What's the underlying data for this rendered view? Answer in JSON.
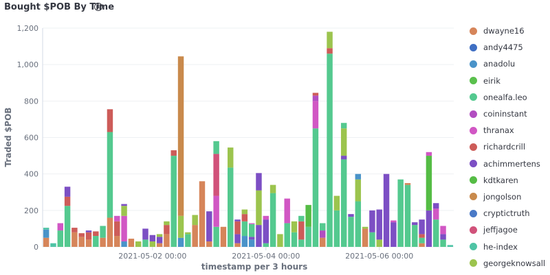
{
  "panel": {
    "title": "Bought $POB By Time",
    "info_icon": "info-icon",
    "info_glyph": "i"
  },
  "chart_data": {
    "type": "bar",
    "stacked": true,
    "title": "Bought $POB By Time",
    "xlabel": "timestamp per 3 hours",
    "ylabel": "Traded $POB",
    "ylim": [
      0,
      1200
    ],
    "yticks": [
      0,
      200,
      400,
      600,
      800,
      1000,
      1200
    ],
    "ytick_labels": [
      "0",
      "200",
      "400",
      "600",
      "800",
      "1,000",
      "1,200"
    ],
    "xtick_labels": [
      {
        "label": "2021-05-02 00:00",
        "at_bar": 15
      },
      {
        "label": "2021-05-04 00:00",
        "at_bar": 31
      },
      {
        "label": "2021-05-06 00:00",
        "at_bar": 47
      }
    ],
    "grid": true,
    "legend_position": "right",
    "series": [
      {
        "name": "dwayne16",
        "color": "#d6855a"
      },
      {
        "name": "andy4475",
        "color": "#3f6fc3"
      },
      {
        "name": "anadolu",
        "color": "#4a93c9"
      },
      {
        "name": "eirik",
        "color": "#5ac04d"
      },
      {
        "name": "onealfa.leo",
        "color": "#54c98f"
      },
      {
        "name": "coininstant",
        "color": "#b24ec1"
      },
      {
        "name": "thranax",
        "color": "#d157c4"
      },
      {
        "name": "richardcrill",
        "color": "#cd5c59"
      },
      {
        "name": "achimmertens",
        "color": "#7c4fc4"
      },
      {
        "name": "kdtkaren",
        "color": "#55bc45"
      },
      {
        "name": "jongolson",
        "color": "#c98a4c"
      },
      {
        "name": "cryptictruth",
        "color": "#4a7ac7"
      },
      {
        "name": "jeffjagoe",
        "color": "#d1527a"
      },
      {
        "name": "he-index",
        "color": "#4fc4a5"
      },
      {
        "name": "georgeknowsall",
        "color": "#9cc44e"
      }
    ],
    "bars": [
      [
        {
          "s": "dwayne16",
          "v": 50
        },
        {
          "s": "anadolu",
          "v": 45
        },
        {
          "s": "he-index",
          "v": 10
        }
      ],
      [
        {
          "s": "he-index",
          "v": 20
        }
      ],
      [
        {
          "s": "onealfa.leo",
          "v": 90
        },
        {
          "s": "thranax",
          "v": 40
        }
      ],
      [
        {
          "s": "onealfa.leo",
          "v": 225
        },
        {
          "s": "richardcrill",
          "v": 50
        },
        {
          "s": "achimmertens",
          "v": 55
        }
      ],
      [
        {
          "s": "dwayne16",
          "v": 80
        },
        {
          "s": "richardcrill",
          "v": 25
        }
      ],
      [
        {
          "s": "dwayne16",
          "v": 55
        },
        {
          "s": "richardcrill",
          "v": 20
        }
      ],
      [
        {
          "s": "dwayne16",
          "v": 40
        },
        {
          "s": "richardcrill",
          "v": 40
        },
        {
          "s": "achimmertens",
          "v": 10
        }
      ],
      [
        {
          "s": "onealfa.leo",
          "v": 60
        },
        {
          "s": "richardcrill",
          "v": 25
        }
      ],
      [
        {
          "s": "dwayne16",
          "v": 50
        },
        {
          "s": "onealfa.leo",
          "v": 65
        }
      ],
      [
        {
          "s": "dwayne16",
          "v": 160
        },
        {
          "s": "onealfa.leo",
          "v": 470
        },
        {
          "s": "richardcrill",
          "v": 125
        }
      ],
      [
        {
          "s": "dwayne16",
          "v": 60
        },
        {
          "s": "richardcrill",
          "v": 80
        },
        {
          "s": "thranax",
          "v": 30
        }
      ],
      [
        {
          "s": "anadolu",
          "v": 30
        },
        {
          "s": "thranax",
          "v": 140
        },
        {
          "s": "georgeknowsall",
          "v": 55
        },
        {
          "s": "achimmertens",
          "v": 10
        }
      ],
      [
        {
          "s": "dwayne16",
          "v": 45
        }
      ],
      [
        {
          "s": "georgeknowsall",
          "v": 30
        }
      ],
      [
        {
          "s": "onealfa.leo",
          "v": 40
        },
        {
          "s": "achimmertens",
          "v": 60
        }
      ],
      [
        {
          "s": "georgeknowsall",
          "v": 30
        },
        {
          "s": "achimmertens",
          "v": 35
        }
      ],
      [
        {
          "s": "dwayne16",
          "v": 20
        },
        {
          "s": "achimmertens",
          "v": 35
        },
        {
          "s": "georgeknowsall",
          "v": 15
        }
      ],
      [
        {
          "s": "dwayne16",
          "v": 70
        },
        {
          "s": "richardcrill",
          "v": 50
        },
        {
          "s": "georgeknowsall",
          "v": 20
        }
      ],
      [
        {
          "s": "onealfa.leo",
          "v": 500
        },
        {
          "s": "richardcrill",
          "v": 30
        }
      ],
      [
        {
          "s": "anadolu",
          "v": 50
        },
        {
          "s": "georgeknowsall",
          "v": 120
        },
        {
          "s": "jongolson",
          "v": 875
        }
      ],
      [
        {
          "s": "onealfa.leo",
          "v": 70
        },
        {
          "s": "georgeknowsall",
          "v": 10
        }
      ],
      [
        {
          "s": "dwayne16",
          "v": 120
        },
        {
          "s": "georgeknowsall",
          "v": 55
        }
      ],
      [
        {
          "s": "dwayne16",
          "v": 360
        }
      ],
      [
        {
          "s": "dwayne16",
          "v": 30
        },
        {
          "s": "achimmertens",
          "v": 165
        }
      ],
      [
        {
          "s": "onealfa.leo",
          "v": 110
        },
        {
          "s": "thranax",
          "v": 170
        },
        {
          "s": "jeffjagoe",
          "v": 230
        },
        {
          "s": "onealfa.leo",
          "v": 70
        }
      ],
      [
        {
          "s": "dwayne16",
          "v": 110
        }
      ],
      [
        {
          "s": "onealfa.leo",
          "v": 435
        },
        {
          "s": "georgeknowsall",
          "v": 110
        }
      ],
      [
        {
          "s": "dwayne16",
          "v": 20
        },
        {
          "s": "achimmertens",
          "v": 50
        },
        {
          "s": "richardcrill",
          "v": 70
        },
        {
          "s": "achimmertens",
          "v": 10
        }
      ],
      [
        {
          "s": "anadolu",
          "v": 60
        },
        {
          "s": "onealfa.leo",
          "v": 80
        },
        {
          "s": "richardcrill",
          "v": 40
        },
        {
          "s": "georgeknowsall",
          "v": 25
        }
      ],
      [
        {
          "s": "anadolu",
          "v": 40
        },
        {
          "s": "achimmertens",
          "v": 15
        },
        {
          "s": "onealfa.leo",
          "v": 70
        },
        {
          "s": "thranax",
          "v": 5
        }
      ],
      [
        {
          "s": "achimmertens",
          "v": 120
        },
        {
          "s": "georgeknowsall",
          "v": 190
        },
        {
          "s": "achimmertens",
          "v": 95
        }
      ],
      [
        {
          "s": "onealfa.leo",
          "v": 20
        },
        {
          "s": "achimmertens",
          "v": 130
        },
        {
          "s": "thranax",
          "v": 20
        }
      ],
      [
        {
          "s": "onealfa.leo",
          "v": 295
        },
        {
          "s": "georgeknowsall",
          "v": 45
        }
      ],
      [
        {
          "s": "georgeknowsall",
          "v": 70
        }
      ],
      [
        {
          "s": "onealfa.leo",
          "v": 130
        },
        {
          "s": "thranax",
          "v": 135
        }
      ],
      [
        {
          "s": "onealfa.leo",
          "v": 80
        },
        {
          "s": "georgeknowsall",
          "v": 60
        }
      ],
      [
        {
          "s": "onealfa.leo",
          "v": 40
        },
        {
          "s": "richardcrill",
          "v": 100
        },
        {
          "s": "onealfa.leo",
          "v": 30
        }
      ],
      [
        {
          "s": "onealfa.leo",
          "v": 110
        },
        {
          "s": "kdtkaren",
          "v": 120
        }
      ],
      [
        {
          "s": "onealfa.leo",
          "v": 650
        },
        {
          "s": "thranax",
          "v": 150
        },
        {
          "s": "coininstant",
          "v": 30
        },
        {
          "s": "richardcrill",
          "v": 15
        }
      ],
      [
        {
          "s": "dwayne16",
          "v": 50
        },
        {
          "s": "coininstant",
          "v": 40
        },
        {
          "s": "onealfa.leo",
          "v": 40
        }
      ],
      [
        {
          "s": "onealfa.leo",
          "v": 1060
        },
        {
          "s": "richardcrill",
          "v": 30
        },
        {
          "s": "georgeknowsall",
          "v": 90
        }
      ],
      [
        {
          "s": "onealfa.leo",
          "v": 200
        },
        {
          "s": "georgeknowsall",
          "v": 80
        }
      ],
      [
        {
          "s": "onealfa.leo",
          "v": 480
        },
        {
          "s": "achimmertens",
          "v": 20
        },
        {
          "s": "georgeknowsall",
          "v": 150
        },
        {
          "s": "onealfa.leo",
          "v": 30
        }
      ],
      [
        {
          "s": "onealfa.leo",
          "v": 165
        },
        {
          "s": "achimmertens",
          "v": 15
        }
      ],
      [
        {
          "s": "onealfa.leo",
          "v": 250
        },
        {
          "s": "georgeknowsall",
          "v": 120
        },
        {
          "s": "anadolu",
          "v": 30
        }
      ],
      [
        {
          "s": "dwayne16",
          "v": 100
        },
        {
          "s": "georgeknowsall",
          "v": 10
        }
      ],
      [
        {
          "s": "onealfa.leo",
          "v": 80
        },
        {
          "s": "achimmertens",
          "v": 120
        }
      ],
      [
        {
          "s": "georgeknowsall",
          "v": 40
        },
        {
          "s": "achimmertens",
          "v": 165
        }
      ],
      [
        {
          "s": "achimmertens",
          "v": 400
        }
      ],
      [
        {
          "s": "achimmertens",
          "v": 135
        },
        {
          "s": "thranax",
          "v": 10
        }
      ],
      [
        {
          "s": "onealfa.leo",
          "v": 370
        }
      ],
      [
        {
          "s": "onealfa.leo",
          "v": 340
        },
        {
          "s": "dwayne16",
          "v": 10
        }
      ],
      [
        {
          "s": "onealfa.leo",
          "v": 120
        },
        {
          "s": "achimmertens",
          "v": 15
        }
      ],
      [
        {
          "s": "dwayne16",
          "v": 20
        },
        {
          "s": "onealfa.leo",
          "v": 30
        },
        {
          "s": "richardcrill",
          "v": 20
        },
        {
          "s": "achimmertens",
          "v": 80
        }
      ],
      [
        {
          "s": "achimmertens",
          "v": 200
        },
        {
          "s": "kdtkaren",
          "v": 300
        },
        {
          "s": "thranax",
          "v": 20
        }
      ],
      [
        {
          "s": "onealfa.leo",
          "v": 150
        },
        {
          "s": "thranax",
          "v": 60
        },
        {
          "s": "achimmertens",
          "v": 30
        }
      ],
      [
        {
          "s": "onealfa.leo",
          "v": 40
        },
        {
          "s": "achimmertens",
          "v": 30
        },
        {
          "s": "thranax",
          "v": 45
        }
      ],
      [
        {
          "s": "he-index",
          "v": 10
        }
      ]
    ]
  }
}
